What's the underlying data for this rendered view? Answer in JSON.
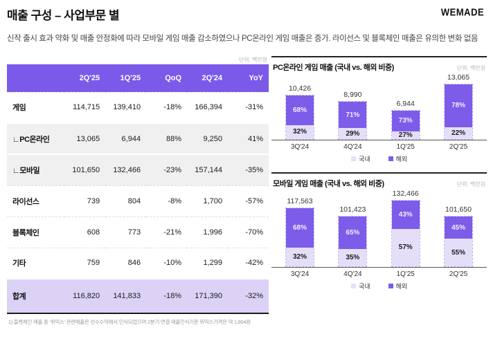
{
  "header": {
    "title": "매출 구성 – 사업부문 별",
    "logo": "WEMADE",
    "subtitle": "신작 출시 효과 약화 및 매출 안정화에 따라 모바일 게임 매출 감소하였으나 PC온라인 게임 매출은 증가. 라이선스 및 블록체인 매출은 유의한 변화 없음"
  },
  "colors": {
    "accent": "#7b5ae9",
    "accent_light": "#e5def9",
    "total_row_bg": "#dcd2f6",
    "sub_row_bg": "#f0f0f0"
  },
  "table": {
    "unit": "단위: 백만원",
    "columns": [
      "",
      "2Q'25",
      "1Q'25",
      "QoQ",
      "2Q'24",
      "YoY"
    ],
    "rows": [
      {
        "label": "게임",
        "style": "plain",
        "values": [
          "114,715",
          "139,410",
          "-18%",
          "166,394",
          "-31%"
        ]
      },
      {
        "label": "∟PC온라인",
        "style": "sub",
        "values": [
          "13,065",
          "6,944",
          "88%",
          "9,250",
          "41%"
        ]
      },
      {
        "label": "∟모바일",
        "style": "sub",
        "values": [
          "101,650",
          "132,466",
          "-23%",
          "157,144",
          "-35%"
        ]
      },
      {
        "label": "라이선스",
        "style": "plain",
        "values": [
          "739",
          "804",
          "-8%",
          "1,700",
          "-57%"
        ]
      },
      {
        "label": "블록체인",
        "style": "plain",
        "values": [
          "608",
          "773",
          "-21%",
          "1,996",
          "-70%"
        ]
      },
      {
        "label": "기타",
        "style": "plain",
        "values": [
          "759",
          "846",
          "-10%",
          "1,299",
          "-42%"
        ]
      },
      {
        "label": "합계",
        "style": "total",
        "values": [
          "116,820",
          "141,833",
          "-18%",
          "171,390",
          "-32%"
        ]
      }
    ],
    "footnote": "1) 블록체인 매출 중 ‘위믹스’ 관련매출은 선수수익에서 인식되었으며 2분기 연결 매출인식기준 위믹스가격은 약 1,804원"
  },
  "chart_data": [
    {
      "type": "bar",
      "stacked": true,
      "title": "PC온라인 게임 매출 (국내 vs. 해외 비중)",
      "unit": "단위: 백만원",
      "categories": [
        "3Q'24",
        "4Q'24",
        "1Q'25",
        "2Q'25"
      ],
      "totals": [
        10426,
        8990,
        6944,
        13065
      ],
      "total_labels": [
        "10,426",
        "8,990",
        "6,944",
        "13,065"
      ],
      "series": [
        {
          "name": "국내",
          "pct": [
            32,
            29,
            27,
            22
          ],
          "color": "#e5def9"
        },
        {
          "name": "해외",
          "pct": [
            68,
            71,
            73,
            78
          ],
          "color": "#7c5ce9"
        }
      ],
      "legend_position": "bottom",
      "grid": false
    },
    {
      "type": "bar",
      "stacked": true,
      "title": "모바일 게임 매출 (국내 vs. 해외 비중)",
      "unit": "단위: 백만원",
      "categories": [
        "3Q'24",
        "4Q'24",
        "1Q'25",
        "2Q'25"
      ],
      "totals": [
        117563,
        101423,
        132466,
        101650
      ],
      "total_labels": [
        "117,563",
        "101,423",
        "132,466",
        "101,650"
      ],
      "series": [
        {
          "name": "국내",
          "pct": [
            32,
            35,
            57,
            55
          ],
          "color": "#e5def9"
        },
        {
          "name": "해외",
          "pct": [
            68,
            65,
            43,
            45
          ],
          "color": "#7c5ce9"
        }
      ],
      "legend_position": "bottom",
      "grid": false
    }
  ]
}
